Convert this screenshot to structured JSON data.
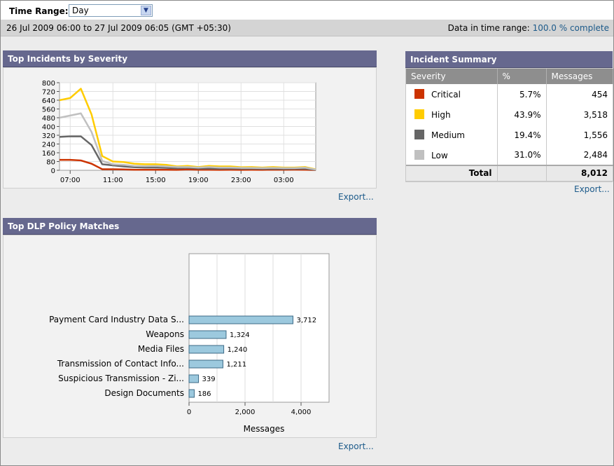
{
  "time_range": {
    "label": "Time Range:",
    "selected": "Day"
  },
  "range_bar": {
    "period": "26 Jul 2009 06:00 to 27 Jul 2009 06:05 (GMT +05:30)",
    "status_label": "Data in time range:",
    "status_value": "100.0 % complete"
  },
  "incidents_panel": {
    "title": "Top Incidents by Severity",
    "export": "Export..."
  },
  "summary_panel": {
    "title": "Incident Summary",
    "headers": [
      "Severity",
      "%",
      "Messages"
    ],
    "rows": [
      {
        "severity": "Critical",
        "percent": "5.7%",
        "messages": "454",
        "color": "#cc3300"
      },
      {
        "severity": "High",
        "percent": "43.9%",
        "messages": "3,518",
        "color": "#ffcc00"
      },
      {
        "severity": "Medium",
        "percent": "19.4%",
        "messages": "1,556",
        "color": "#666666"
      },
      {
        "severity": "Low",
        "percent": "31.0%",
        "messages": "2,484",
        "color": "#c0c0c0"
      }
    ],
    "total_label": "Total",
    "total_percent": "",
    "total_messages": "8,012",
    "export": "Export..."
  },
  "dlp_panel": {
    "title": "Top DLP Policy Matches",
    "export": "Export..."
  },
  "chart_data": [
    {
      "type": "line",
      "title": "",
      "x_ticks": [
        "07:00",
        "11:00",
        "15:00",
        "19:00",
        "23:00",
        "03:00"
      ],
      "y_ticks": [
        0,
        80,
        160,
        240,
        320,
        400,
        480,
        560,
        640,
        720,
        800
      ],
      "ylim": [
        0,
        800
      ],
      "grid": true,
      "x_hours": [
        0,
        1,
        2,
        3,
        4,
        5,
        6,
        7,
        8,
        9,
        10,
        11,
        12,
        13,
        14,
        15,
        16,
        17,
        18,
        19,
        20,
        21,
        22,
        23,
        24
      ],
      "series": [
        {
          "name": "Critical",
          "color": "#cc3300",
          "values": [
            95,
            95,
            90,
            60,
            10,
            10,
            8,
            5,
            5,
            5,
            5,
            4,
            8,
            5,
            5,
            4,
            5,
            4,
            5,
            4,
            5,
            5,
            6,
            5,
            2
          ]
        },
        {
          "name": "High",
          "color": "#ffcc00",
          "values": [
            640,
            660,
            745,
            510,
            130,
            80,
            75,
            60,
            55,
            55,
            50,
            35,
            40,
            30,
            40,
            35,
            35,
            28,
            30,
            25,
            30,
            25,
            25,
            30,
            8
          ]
        },
        {
          "name": "Medium",
          "color": "#666666",
          "values": [
            305,
            310,
            310,
            230,
            55,
            45,
            35,
            28,
            25,
            25,
            22,
            18,
            22,
            16,
            16,
            14,
            16,
            14,
            15,
            13,
            13,
            12,
            14,
            14,
            4
          ]
        },
        {
          "name": "Low",
          "color": "#c0c0c0",
          "values": [
            480,
            500,
            520,
            350,
            85,
            55,
            50,
            40,
            38,
            40,
            35,
            30,
            30,
            25,
            30,
            25,
            25,
            22,
            22,
            20,
            22,
            20,
            20,
            24,
            6
          ]
        }
      ]
    },
    {
      "type": "bar",
      "orientation": "horizontal",
      "categories": [
        "Payment Card Industry Data S...",
        "Weapons",
        "Media Files",
        "Transmission of Contact Info...",
        "Suspicious Transmission - Zi...",
        "Design Documents"
      ],
      "values": [
        3712,
        1324,
        1240,
        1211,
        339,
        186
      ],
      "value_labels": [
        "3,712",
        "1,324",
        "1,240",
        "1,211",
        "339",
        "186"
      ],
      "x_ticks": [
        "0",
        "2,000",
        "4,000"
      ],
      "xlim": [
        0,
        5000
      ],
      "xlabel": "Messages",
      "bar_color": "#9cc9de",
      "grid": true
    }
  ]
}
